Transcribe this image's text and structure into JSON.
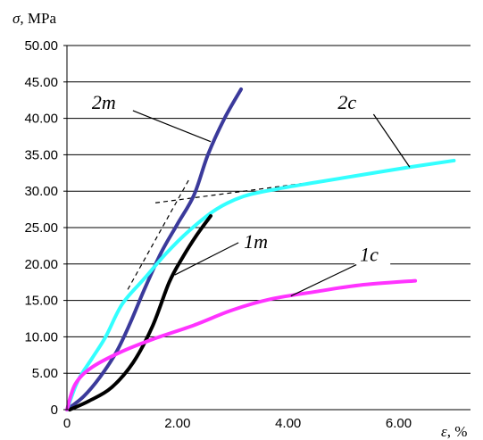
{
  "chart_data": {
    "type": "line",
    "xlabel_symbol": "ε",
    "xlabel_unit": ", %",
    "ylabel_symbol": "σ",
    "ylabel_unit": ", MPa",
    "xlim": [
      0,
      7.3
    ],
    "ylim": [
      0,
      50
    ],
    "grid": "horizontal",
    "x_ticks": [
      {
        "value": 0,
        "label": "0"
      },
      {
        "value": 2,
        "label": "2.00"
      },
      {
        "value": 4,
        "label": "4.00"
      },
      {
        "value": 6,
        "label": "6.00"
      }
    ],
    "y_ticks": [
      {
        "value": 0,
        "label": "0"
      },
      {
        "value": 5,
        "label": "5.00"
      },
      {
        "value": 10,
        "label": "10.00"
      },
      {
        "value": 15,
        "label": "15.00"
      },
      {
        "value": 20,
        "label": "20.00"
      },
      {
        "value": 25,
        "label": "25.00"
      },
      {
        "value": 30,
        "label": "30.00"
      },
      {
        "value": 35,
        "label": "35.00"
      },
      {
        "value": 40,
        "label": "40.00"
      },
      {
        "value": 45,
        "label": "45.00"
      },
      {
        "value": 50,
        "label": "50.00"
      }
    ],
    "series": [
      {
        "name": "2m",
        "color": "#3b3a9b",
        "points": [
          [
            0,
            0
          ],
          [
            0.3,
            1.8
          ],
          [
            0.6,
            4.5
          ],
          [
            0.9,
            8.0
          ],
          [
            1.15,
            12.0
          ],
          [
            1.4,
            16.5
          ],
          [
            1.7,
            21.5
          ],
          [
            2.0,
            25.5
          ],
          [
            2.3,
            29.5
          ],
          [
            2.55,
            35.0
          ],
          [
            2.85,
            40.0
          ],
          [
            3.15,
            44.0
          ]
        ]
      },
      {
        "name": "2c",
        "color": "#33ffff",
        "points": [
          [
            0,
            0
          ],
          [
            0.2,
            4.0
          ],
          [
            0.45,
            7.0
          ],
          [
            0.7,
            10.0
          ],
          [
            1.0,
            14.5
          ],
          [
            1.4,
            18.0
          ],
          [
            1.8,
            21.5
          ],
          [
            2.2,
            24.5
          ],
          [
            2.7,
            27.5
          ],
          [
            3.2,
            29.3
          ],
          [
            3.8,
            30.3
          ],
          [
            4.5,
            31.2
          ],
          [
            5.3,
            32.2
          ],
          [
            6.2,
            33.3
          ],
          [
            7.0,
            34.2
          ]
        ]
      },
      {
        "name": "1m",
        "color": "#000000",
        "points": [
          [
            0.05,
            0
          ],
          [
            0.4,
            1.2
          ],
          [
            0.8,
            3.0
          ],
          [
            1.2,
            6.5
          ],
          [
            1.55,
            11.5
          ],
          [
            1.85,
            17.5
          ],
          [
            2.1,
            21.0
          ],
          [
            2.35,
            24.0
          ],
          [
            2.6,
            26.6
          ]
        ]
      },
      {
        "name": "1c",
        "color": "#ff33ff",
        "points": [
          [
            0,
            0
          ],
          [
            0.15,
            3.5
          ],
          [
            0.45,
            5.8
          ],
          [
            1.0,
            8.0
          ],
          [
            1.6,
            9.8
          ],
          [
            2.3,
            11.6
          ],
          [
            3.0,
            13.7
          ],
          [
            3.7,
            15.2
          ],
          [
            4.5,
            16.2
          ],
          [
            5.3,
            17.1
          ],
          [
            6.3,
            17.7
          ]
        ]
      }
    ],
    "tangent_lines": [
      {
        "style": "dashed",
        "points": [
          [
            1.1,
            16.5
          ],
          [
            2.2,
            31.5
          ]
        ]
      },
      {
        "style": "dashed",
        "points": [
          [
            1.6,
            28.4
          ],
          [
            5.2,
            32.0
          ]
        ]
      }
    ],
    "annotations": [
      {
        "text": "2m",
        "x": 0.45,
        "y": 41.3,
        "arrow_to": [
          2.6,
          36.8
        ]
      },
      {
        "text": "2c",
        "x": 4.9,
        "y": 41.3,
        "arrow_to": [
          6.2,
          33.3
        ]
      },
      {
        "text": "1m",
        "x": 3.2,
        "y": 22.2,
        "arrow_to": [
          1.95,
          18.5
        ]
      },
      {
        "text": "1c",
        "x": 5.3,
        "y": 20.4,
        "arrow_to": [
          4.05,
          15.6
        ]
      }
    ]
  }
}
